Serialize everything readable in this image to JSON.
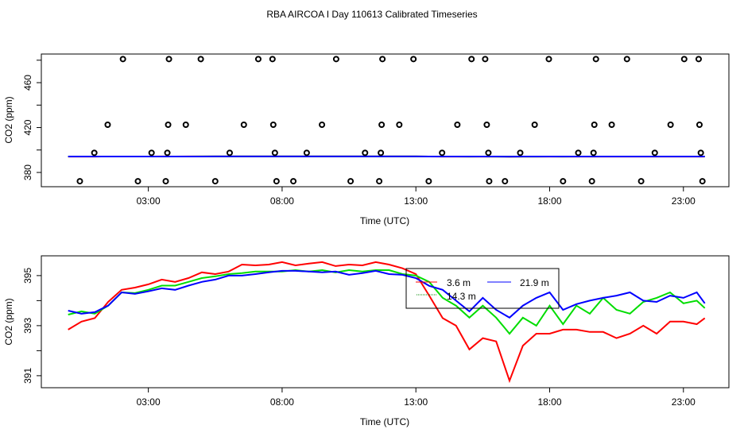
{
  "title": "RBA AIRCOA I  Day 110613  Calibrated Timeseries",
  "colors": {
    "s36": "#ff0000",
    "s143": "#00dd00",
    "s219": "#0000ff"
  },
  "chart_data": [
    {
      "type": "scatter",
      "xlabel": "Time (UTC)",
      "ylabel": "CO2 (ppm)",
      "xlim": [
        -1.0,
        24.7
      ],
      "ylim": [
        367.3,
        485.5
      ],
      "xticks": [
        3,
        8,
        13,
        18,
        23
      ],
      "xtick_labels": [
        "03:00",
        "08:00",
        "13:00",
        "18:00",
        "23:00"
      ],
      "yticks": [
        380,
        400,
        420,
        440,
        460,
        480
      ],
      "ytick_labels": [
        "380",
        "",
        "420",
        "",
        "460",
        ""
      ],
      "points": [
        {
          "y": 481,
          "x": [
            2.05,
            3.77,
            4.96,
            7.11,
            7.64,
            10.02,
            11.75,
            12.91,
            15.08,
            15.59,
            17.97,
            19.73,
            20.89,
            23.03,
            23.57
          ]
        },
        {
          "y": 422.5,
          "x": [
            1.48,
            3.74,
            4.4,
            6.57,
            7.67,
            9.49,
            11.72,
            12.38,
            14.55,
            15.65,
            17.44,
            19.67,
            20.32,
            22.52,
            23.6
          ]
        },
        {
          "y": 397.5,
          "x": [
            0.98,
            3.12,
            3.71,
            6.04,
            7.73,
            8.92,
            11.1,
            11.69,
            13.98,
            15.71,
            16.9,
            19.07,
            19.64,
            21.93,
            23.65
          ]
        },
        {
          "y": 372.2,
          "x": [
            0.44,
            2.61,
            3.65,
            5.5,
            7.79,
            8.42,
            10.56,
            11.63,
            13.48,
            15.74,
            16.33,
            18.5,
            19.58,
            21.42,
            23.71
          ]
        }
      ],
      "lines": "same series as second chart"
    },
    {
      "type": "line",
      "xlabel": "Time (UTC)",
      "ylabel": "CO2 (ppm)",
      "xlim": [
        -1.0,
        24.7
      ],
      "ylim": [
        390.52,
        395.79
      ],
      "xticks": [
        3,
        8,
        13,
        18,
        23
      ],
      "xtick_labels": [
        "03:00",
        "08:00",
        "13:00",
        "18:00",
        "23:00"
      ],
      "yticks": [
        391,
        392,
        393,
        394,
        395
      ],
      "ytick_labels": [
        "391",
        "",
        "393",
        "",
        "395"
      ],
      "legend": [
        "3.6 m",
        "14.3 m",
        "21.9 m"
      ],
      "legend_placement": "top-center",
      "x": [
        0,
        0.5,
        1,
        1.5,
        2,
        2.5,
        3,
        3.5,
        4,
        4.5,
        5,
        5.5,
        6,
        6.5,
        7,
        7.5,
        8,
        8.5,
        9,
        9.5,
        10,
        10.5,
        11,
        11.5,
        12,
        12.5,
        13,
        13.5,
        14,
        14.5,
        15,
        15.5,
        16,
        16.5,
        17,
        17.5,
        18,
        18.5,
        19,
        19.5,
        20,
        20.5,
        21,
        21.5,
        22,
        22.5,
        23,
        23.5,
        23.8
      ],
      "series": [
        {
          "name": "3.6 m",
          "color": "#ff0000",
          "values": [
            392.84,
            393.16,
            393.3,
            393.95,
            394.43,
            394.52,
            394.65,
            394.84,
            394.75,
            394.9,
            395.13,
            395.06,
            395.16,
            395.44,
            395.41,
            395.44,
            395.54,
            395.41,
            395.48,
            395.54,
            395.38,
            395.44,
            395.41,
            395.54,
            395.44,
            395.29,
            395.06,
            394.2,
            393.3,
            393.0,
            392.05,
            392.5,
            392.37,
            390.8,
            392.2,
            392.68,
            392.68,
            392.84,
            392.84,
            392.75,
            392.75,
            392.5,
            392.68,
            393.0,
            392.68,
            393.16,
            393.16,
            393.06,
            393.3
          ]
        },
        {
          "name": "14.3 m",
          "color": "#00dd00",
          "values": [
            393.44,
            393.57,
            393.48,
            393.8,
            394.33,
            394.3,
            394.43,
            394.6,
            394.6,
            394.75,
            394.9,
            394.97,
            395.06,
            395.1,
            395.16,
            395.16,
            395.16,
            395.22,
            395.16,
            395.22,
            395.13,
            395.22,
            395.16,
            395.22,
            395.22,
            395.06,
            395.0,
            394.75,
            394.11,
            393.8,
            393.32,
            393.8,
            393.32,
            392.68,
            393.32,
            393.0,
            393.8,
            393.06,
            393.8,
            393.48,
            394.11,
            393.63,
            393.48,
            393.95,
            394.11,
            394.33,
            393.89,
            394.0,
            393.7
          ]
        },
        {
          "name": "21.9 m",
          "color": "#0000ff",
          "values": [
            393.6,
            393.48,
            393.54,
            393.8,
            394.33,
            394.27,
            394.37,
            394.49,
            394.43,
            394.6,
            394.75,
            394.84,
            395.0,
            395.0,
            395.06,
            395.13,
            395.19,
            395.19,
            395.16,
            395.13,
            395.16,
            395.03,
            395.1,
            395.19,
            395.06,
            395.03,
            394.9,
            394.59,
            394.43,
            394.0,
            393.57,
            394.11,
            393.63,
            393.32,
            393.8,
            394.11,
            394.33,
            393.63,
            393.86,
            394.0,
            394.11,
            394.2,
            394.33,
            394.0,
            393.95,
            394.2,
            394.11,
            394.33,
            393.89
          ]
        }
      ]
    }
  ]
}
